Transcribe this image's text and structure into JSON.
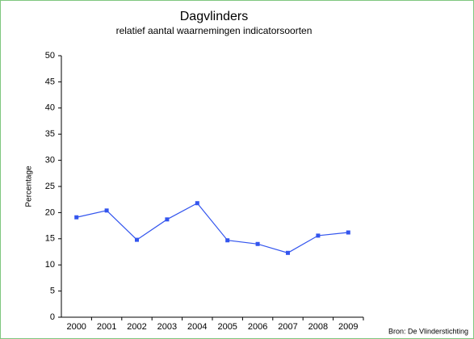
{
  "chart_data": {
    "type": "line",
    "title": "Dagvlinders",
    "subtitle": "relatief aantal waarnemingen indicatorsoorten",
    "y_label": "Percentage",
    "source": "Bron: De Vlinderstichting",
    "categories": [
      "2000",
      "2001",
      "2002",
      "2003",
      "2004",
      "2005",
      "2006",
      "2007",
      "2008",
      "2009"
    ],
    "series": [
      {
        "color": "#3355ee",
        "values": [
          19.1,
          20.4,
          14.8,
          18.7,
          21.8,
          14.7,
          14.0,
          12.3,
          15.6,
          16.2
        ]
      }
    ],
    "ylim": [
      0,
      50
    ],
    "yticks": [
      0,
      5,
      10,
      15,
      20,
      25,
      30,
      35,
      40,
      45,
      50
    ]
  }
}
